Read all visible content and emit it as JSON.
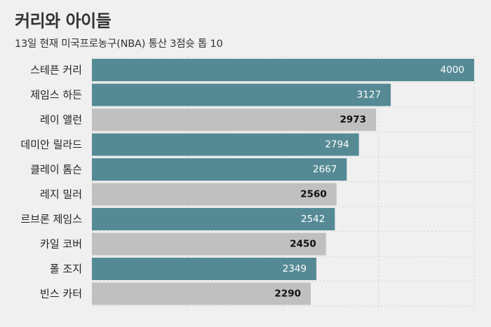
{
  "header": {
    "title": "커리와 아이들",
    "subtitle": "13일 현재 미국프로농구(NBA) 통산 3점슛 톱 10"
  },
  "colors": {
    "background": "#f0f0f0",
    "highlight": "#558a95",
    "muted": "#c0c0c0",
    "grid": "#c8c8c8"
  },
  "chart_data": {
    "type": "bar",
    "orientation": "horizontal",
    "title": "커리와 아이들",
    "subtitle": "13일 현재 미국프로농구(NBA) 통산 3점슛 톱 10",
    "categories": [
      "스테픈 커리",
      "제임스 하든",
      "레이 앨런",
      "데미안 릴라드",
      "클레이 톰슨",
      "레지 밀러",
      "르브론 제임스",
      "카일 코버",
      "폴 조지",
      "빈스 카터"
    ],
    "values": [
      4000,
      3127,
      2973,
      2794,
      2667,
      2560,
      2542,
      2450,
      2349,
      2290
    ],
    "active": [
      true,
      true,
      false,
      true,
      true,
      false,
      true,
      false,
      true,
      false
    ],
    "xlim": [
      0,
      4000
    ],
    "grid": true,
    "legend": "none"
  }
}
